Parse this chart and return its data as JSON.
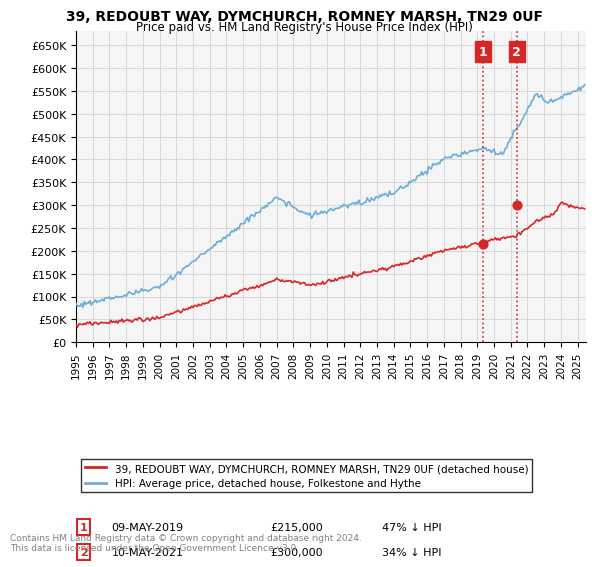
{
  "title": "39, REDOUBT WAY, DYMCHURCH, ROMNEY MARSH, TN29 0UF",
  "subtitle": "Price paid vs. HM Land Registry's House Price Index (HPI)",
  "ylabel_ticks": [
    "£0",
    "£50K",
    "£100K",
    "£150K",
    "£200K",
    "£250K",
    "£300K",
    "£350K",
    "£400K",
    "£450K",
    "£500K",
    "£550K",
    "£600K",
    "£650K"
  ],
  "ytick_values": [
    0,
    50000,
    100000,
    150000,
    200000,
    250000,
    300000,
    350000,
    400000,
    450000,
    500000,
    550000,
    600000,
    650000
  ],
  "ylim": [
    0,
    680000
  ],
  "xlim_start": 1995.0,
  "xlim_end": 2025.5,
  "hpi_color": "#6baed6",
  "price_color": "#d62728",
  "vline_color": "#d62728",
  "annotation_box_color": "#d62728",
  "annotation_text_color": "white",
  "bg_color": "#f5f5f5",
  "grid_color": "#cccccc",
  "legend_entry1": "39, REDOUBT WAY, DYMCHURCH, ROMNEY MARSH, TN29 0UF (detached house)",
  "legend_entry2": "HPI: Average price, detached house, Folkestone and Hythe",
  "transaction1_label": "1",
  "transaction1_date": "09-MAY-2019",
  "transaction1_price": "£215,000",
  "transaction1_hpi": "47% ↓ HPI",
  "transaction1_x": 2019.36,
  "transaction1_y": 215000,
  "transaction2_label": "2",
  "transaction2_date": "10-MAY-2021",
  "transaction2_price": "£300,000",
  "transaction2_hpi": "34% ↓ HPI",
  "transaction2_x": 2021.36,
  "transaction2_y": 300000,
  "footer": "Contains HM Land Registry data © Crown copyright and database right 2024.\nThis data is licensed under the Open Government Licence v3.0.",
  "xtick_years": [
    1995,
    1996,
    1997,
    1998,
    1999,
    2000,
    2001,
    2002,
    2003,
    2004,
    2005,
    2006,
    2007,
    2008,
    2009,
    2010,
    2011,
    2012,
    2013,
    2014,
    2015,
    2016,
    2017,
    2018,
    2019,
    2020,
    2021,
    2022,
    2023,
    2024,
    2025
  ]
}
